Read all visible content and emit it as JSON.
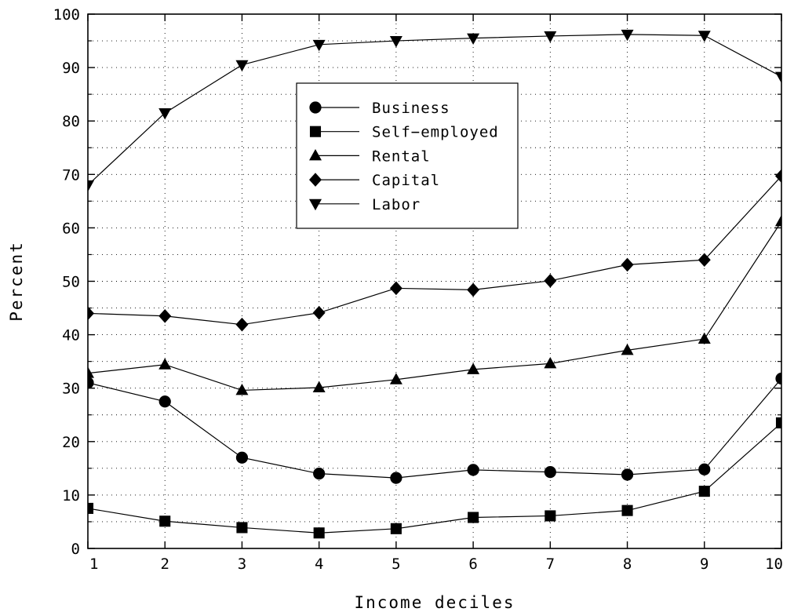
{
  "chart_data": {
    "type": "line",
    "title": "",
    "xlabel": "Income deciles",
    "ylabel": "Percent",
    "xlim": [
      1,
      10
    ],
    "ylim": [
      0,
      100
    ],
    "x_ticks": [
      1,
      2,
      3,
      4,
      5,
      6,
      7,
      8,
      9,
      10
    ],
    "y_ticks": [
      0,
      10,
      20,
      30,
      40,
      50,
      60,
      70,
      80,
      90,
      100
    ],
    "grid": true,
    "legend_position": "upper-center",
    "x": [
      1,
      2,
      3,
      4,
      5,
      6,
      7,
      8,
      9,
      10
    ],
    "series": [
      {
        "name": "Business",
        "marker": "circle",
        "values": [
          31.0,
          27.5,
          17.0,
          14.0,
          13.2,
          14.7,
          14.3,
          13.8,
          14.8,
          31.8
        ]
      },
      {
        "name": "Self−employed",
        "marker": "square",
        "values": [
          7.5,
          5.1,
          3.9,
          2.9,
          3.7,
          5.8,
          6.1,
          7.1,
          10.7,
          23.5
        ]
      },
      {
        "name": "Rental",
        "marker": "triangle-up",
        "values": [
          32.8,
          34.4,
          29.6,
          30.1,
          31.6,
          33.5,
          34.6,
          37.1,
          39.2,
          61.2
        ]
      },
      {
        "name": "Capital",
        "marker": "diamond",
        "values": [
          44.0,
          43.5,
          41.9,
          44.1,
          48.7,
          48.4,
          50.1,
          53.1,
          54.0,
          69.7
        ]
      },
      {
        "name": "Labor",
        "marker": "triangle-down",
        "values": [
          68.0,
          81.5,
          90.5,
          94.3,
          95.0,
          95.5,
          95.9,
          96.2,
          96.0,
          88.3
        ]
      }
    ]
  }
}
